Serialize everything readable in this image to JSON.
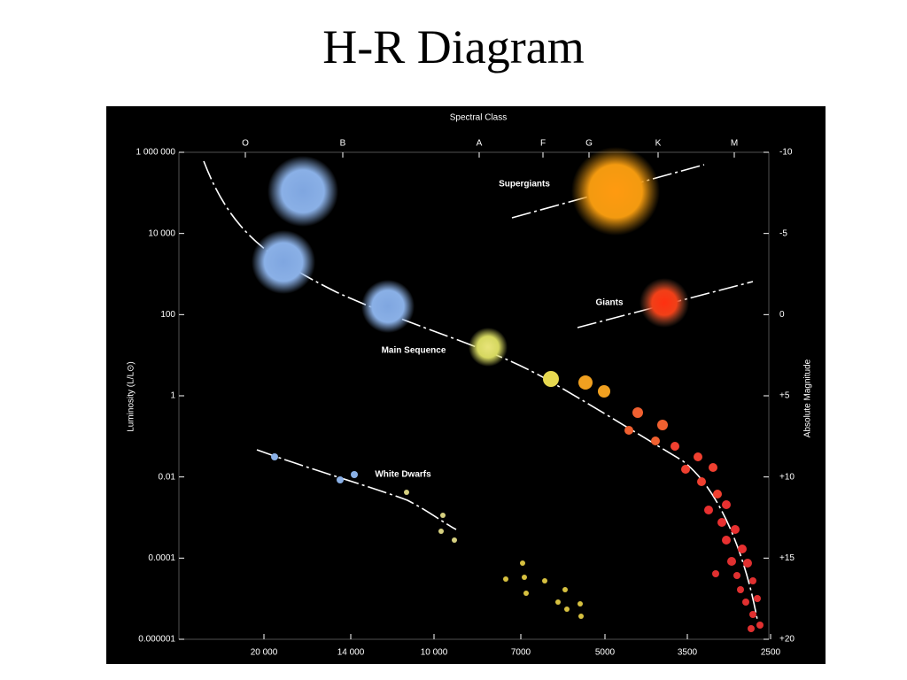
{
  "title": "H-R Diagram",
  "figure": {
    "top_label": "Spectral Class",
    "spectral_classes": [
      "O",
      "B",
      "A",
      "F",
      "G",
      "K",
      "M"
    ],
    "left_axis_title": "Luminosity (L/L⊙)",
    "left_ticks": [
      "1 000 000",
      "10 000",
      "100",
      "1",
      "0.01",
      "0.0001",
      "0.000001"
    ],
    "right_axis_title": "Absolute Magnitude",
    "right_ticks": [
      "-10",
      "-5",
      "0",
      "+5",
      "+10",
      "+15",
      "+20"
    ],
    "bottom_ticks": [
      "20 000",
      "14 000",
      "10 000",
      "7000",
      "5000",
      "3500",
      "2500"
    ],
    "regions": [
      "Supergiants",
      "Giants",
      "Main Sequence",
      "White Dwarfs"
    ]
  }
}
